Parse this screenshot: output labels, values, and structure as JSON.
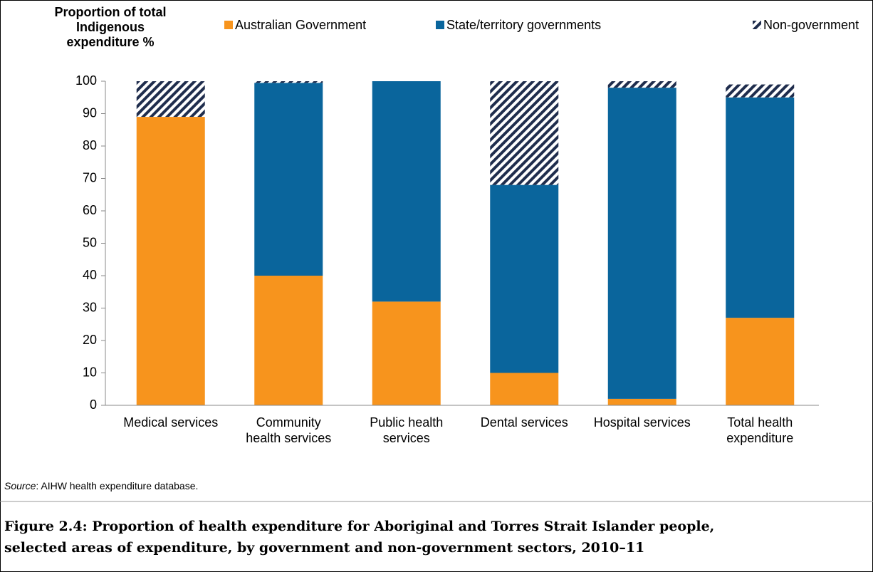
{
  "chart_data": {
    "type": "stacked_bar",
    "y_axis_title": [
      "Proportion of total",
      "Indigenous",
      "expenditure %"
    ],
    "categories": [
      [
        "Medical services"
      ],
      [
        "Community",
        "health services"
      ],
      [
        "Public health",
        "services"
      ],
      [
        "Dental services"
      ],
      [
        "Hospital services"
      ],
      [
        "Total health",
        "expenditure"
      ]
    ],
    "series": [
      {
        "name": "Australian Government",
        "color": "#f7941d",
        "values": [
          89,
          40,
          32,
          10,
          2,
          27
        ]
      },
      {
        "name": "State/territory governments",
        "color": "#0a659c",
        "values": [
          0,
          59.5,
          68,
          58,
          96,
          68
        ]
      },
      {
        "name": "Non-government",
        "color": "#1f2d4d",
        "pattern": "hatch",
        "values": [
          11,
          0.5,
          0,
          32,
          2,
          4
        ]
      }
    ],
    "ylim": [
      0,
      100
    ],
    "yticks": [
      0,
      10,
      20,
      30,
      40,
      50,
      60,
      70,
      80,
      90,
      100
    ],
    "source_label": "Source",
    "source_text": ": AIHW health expenditure database.",
    "caption": [
      "Figure 2.4: Proportion of health expenditure for Aboriginal and Torres Strait Islander people,",
      "selected areas of expenditure, by government and non-government sectors, 2010–11"
    ]
  }
}
